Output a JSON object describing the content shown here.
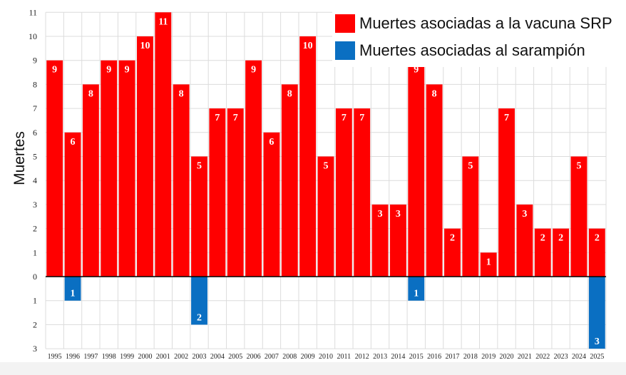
{
  "chart_data": {
    "type": "bar",
    "ylabel": "Muertes",
    "categories": [
      "1995",
      "1996",
      "1997",
      "1998",
      "1999",
      "2000",
      "2001",
      "2002",
      "2003",
      "2004",
      "2005",
      "2006",
      "2007",
      "2008",
      "2009",
      "2010",
      "2011",
      "2012",
      "2013",
      "2014",
      "2015",
      "2016",
      "2017",
      "2018",
      "2019",
      "2020",
      "2021",
      "2022",
      "2023",
      "2024",
      "2025"
    ],
    "series": [
      {
        "name": "Muertes asociadas a la vacuna SRP",
        "color": "#ff0000",
        "direction": "up",
        "values": [
          9,
          6,
          8,
          9,
          9,
          10,
          11,
          8,
          5,
          7,
          7,
          9,
          6,
          8,
          10,
          5,
          7,
          7,
          3,
          3,
          9,
          8,
          2,
          5,
          1,
          7,
          3,
          2,
          2,
          5,
          2
        ]
      },
      {
        "name": "Muertes asociadas al sarampión",
        "color": "#0a6fc2",
        "direction": "down",
        "values": [
          0,
          1,
          0,
          0,
          0,
          0,
          0,
          0,
          2,
          0,
          0,
          0,
          0,
          0,
          0,
          0,
          0,
          0,
          0,
          0,
          1,
          0,
          0,
          0,
          0,
          0,
          0,
          0,
          0,
          0,
          3
        ]
      }
    ],
    "y_ticks_up": [
      "0",
      "1",
      "2",
      "3",
      "4",
      "5",
      "6",
      "7",
      "8",
      "9",
      "10",
      "11"
    ],
    "y_ticks_down": [
      "1",
      "2",
      "3"
    ],
    "ylim": [
      -3,
      11
    ],
    "grid": true,
    "legend_position": "top-right"
  }
}
